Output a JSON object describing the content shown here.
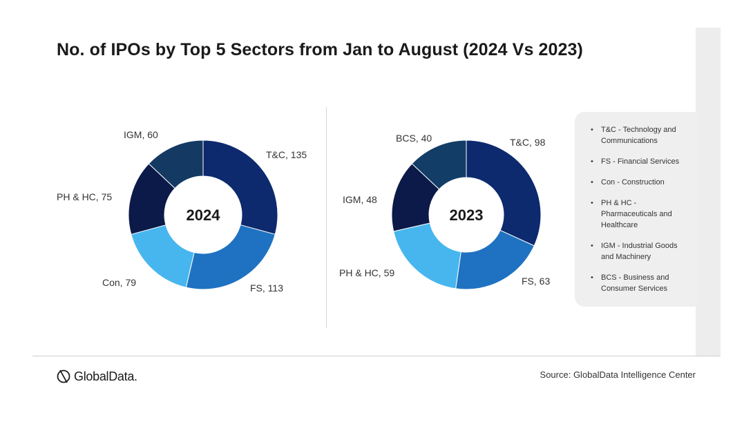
{
  "title": "No. of IPOs by Top 5 Sectors from Jan to August (2024 Vs 2023)",
  "colors": {
    "T&C": "#0d2a6e",
    "FS": "#1f72c1",
    "Con": "#48b6ee",
    "PH & HC": "#0b1a48",
    "IGM": "#143a63",
    "BCS": "#123d66"
  },
  "chart_data": [
    {
      "type": "donut",
      "title": "2024",
      "center_label": "2024",
      "slices": [
        {
          "key": "T&C",
          "label": "T&C, 135",
          "value": 135,
          "color": "#0d2a6e"
        },
        {
          "key": "FS",
          "label": "FS, 113",
          "value": 113,
          "color": "#1f72c1"
        },
        {
          "key": "Con",
          "label": "Con, 79",
          "value": 79,
          "color": "#48b6ee"
        },
        {
          "key": "PH & HC",
          "label": "PH & HC, 75",
          "value": 75,
          "color": "#0b1a48"
        },
        {
          "key": "IGM",
          "label": "IGM, 60",
          "value": 60,
          "color": "#143a63"
        }
      ]
    },
    {
      "type": "donut",
      "title": "2023",
      "center_label": "2023",
      "slices": [
        {
          "key": "T&C",
          "label": "T&C, 98",
          "value": 98,
          "color": "#0d2a6e"
        },
        {
          "key": "FS",
          "label": "FS, 63",
          "value": 63,
          "color": "#1f72c1"
        },
        {
          "key": "PH & HC",
          "label": "PH & HC, 59",
          "value": 59,
          "color": "#48b6ee"
        },
        {
          "key": "IGM",
          "label": "IGM, 48",
          "value": 48,
          "color": "#0b1a48"
        },
        {
          "key": "BCS",
          "label": "BCS, 40",
          "value": 40,
          "color": "#123d66"
        }
      ]
    }
  ],
  "legend": {
    "items": [
      "T&C - Technology and Communications",
      "FS - Financial Services",
      "Con - Construction",
      "PH & HC - Pharmaceuticals and Healthcare",
      "IGM - Industrial Goods and Machinery",
      "BCS - Business and Consumer Services"
    ]
  },
  "footer": {
    "brand": "GlobalData.",
    "source": "Source: GlobalData Intelligence Center"
  },
  "icons": {
    "logo": "globaldata-logo-icon"
  }
}
